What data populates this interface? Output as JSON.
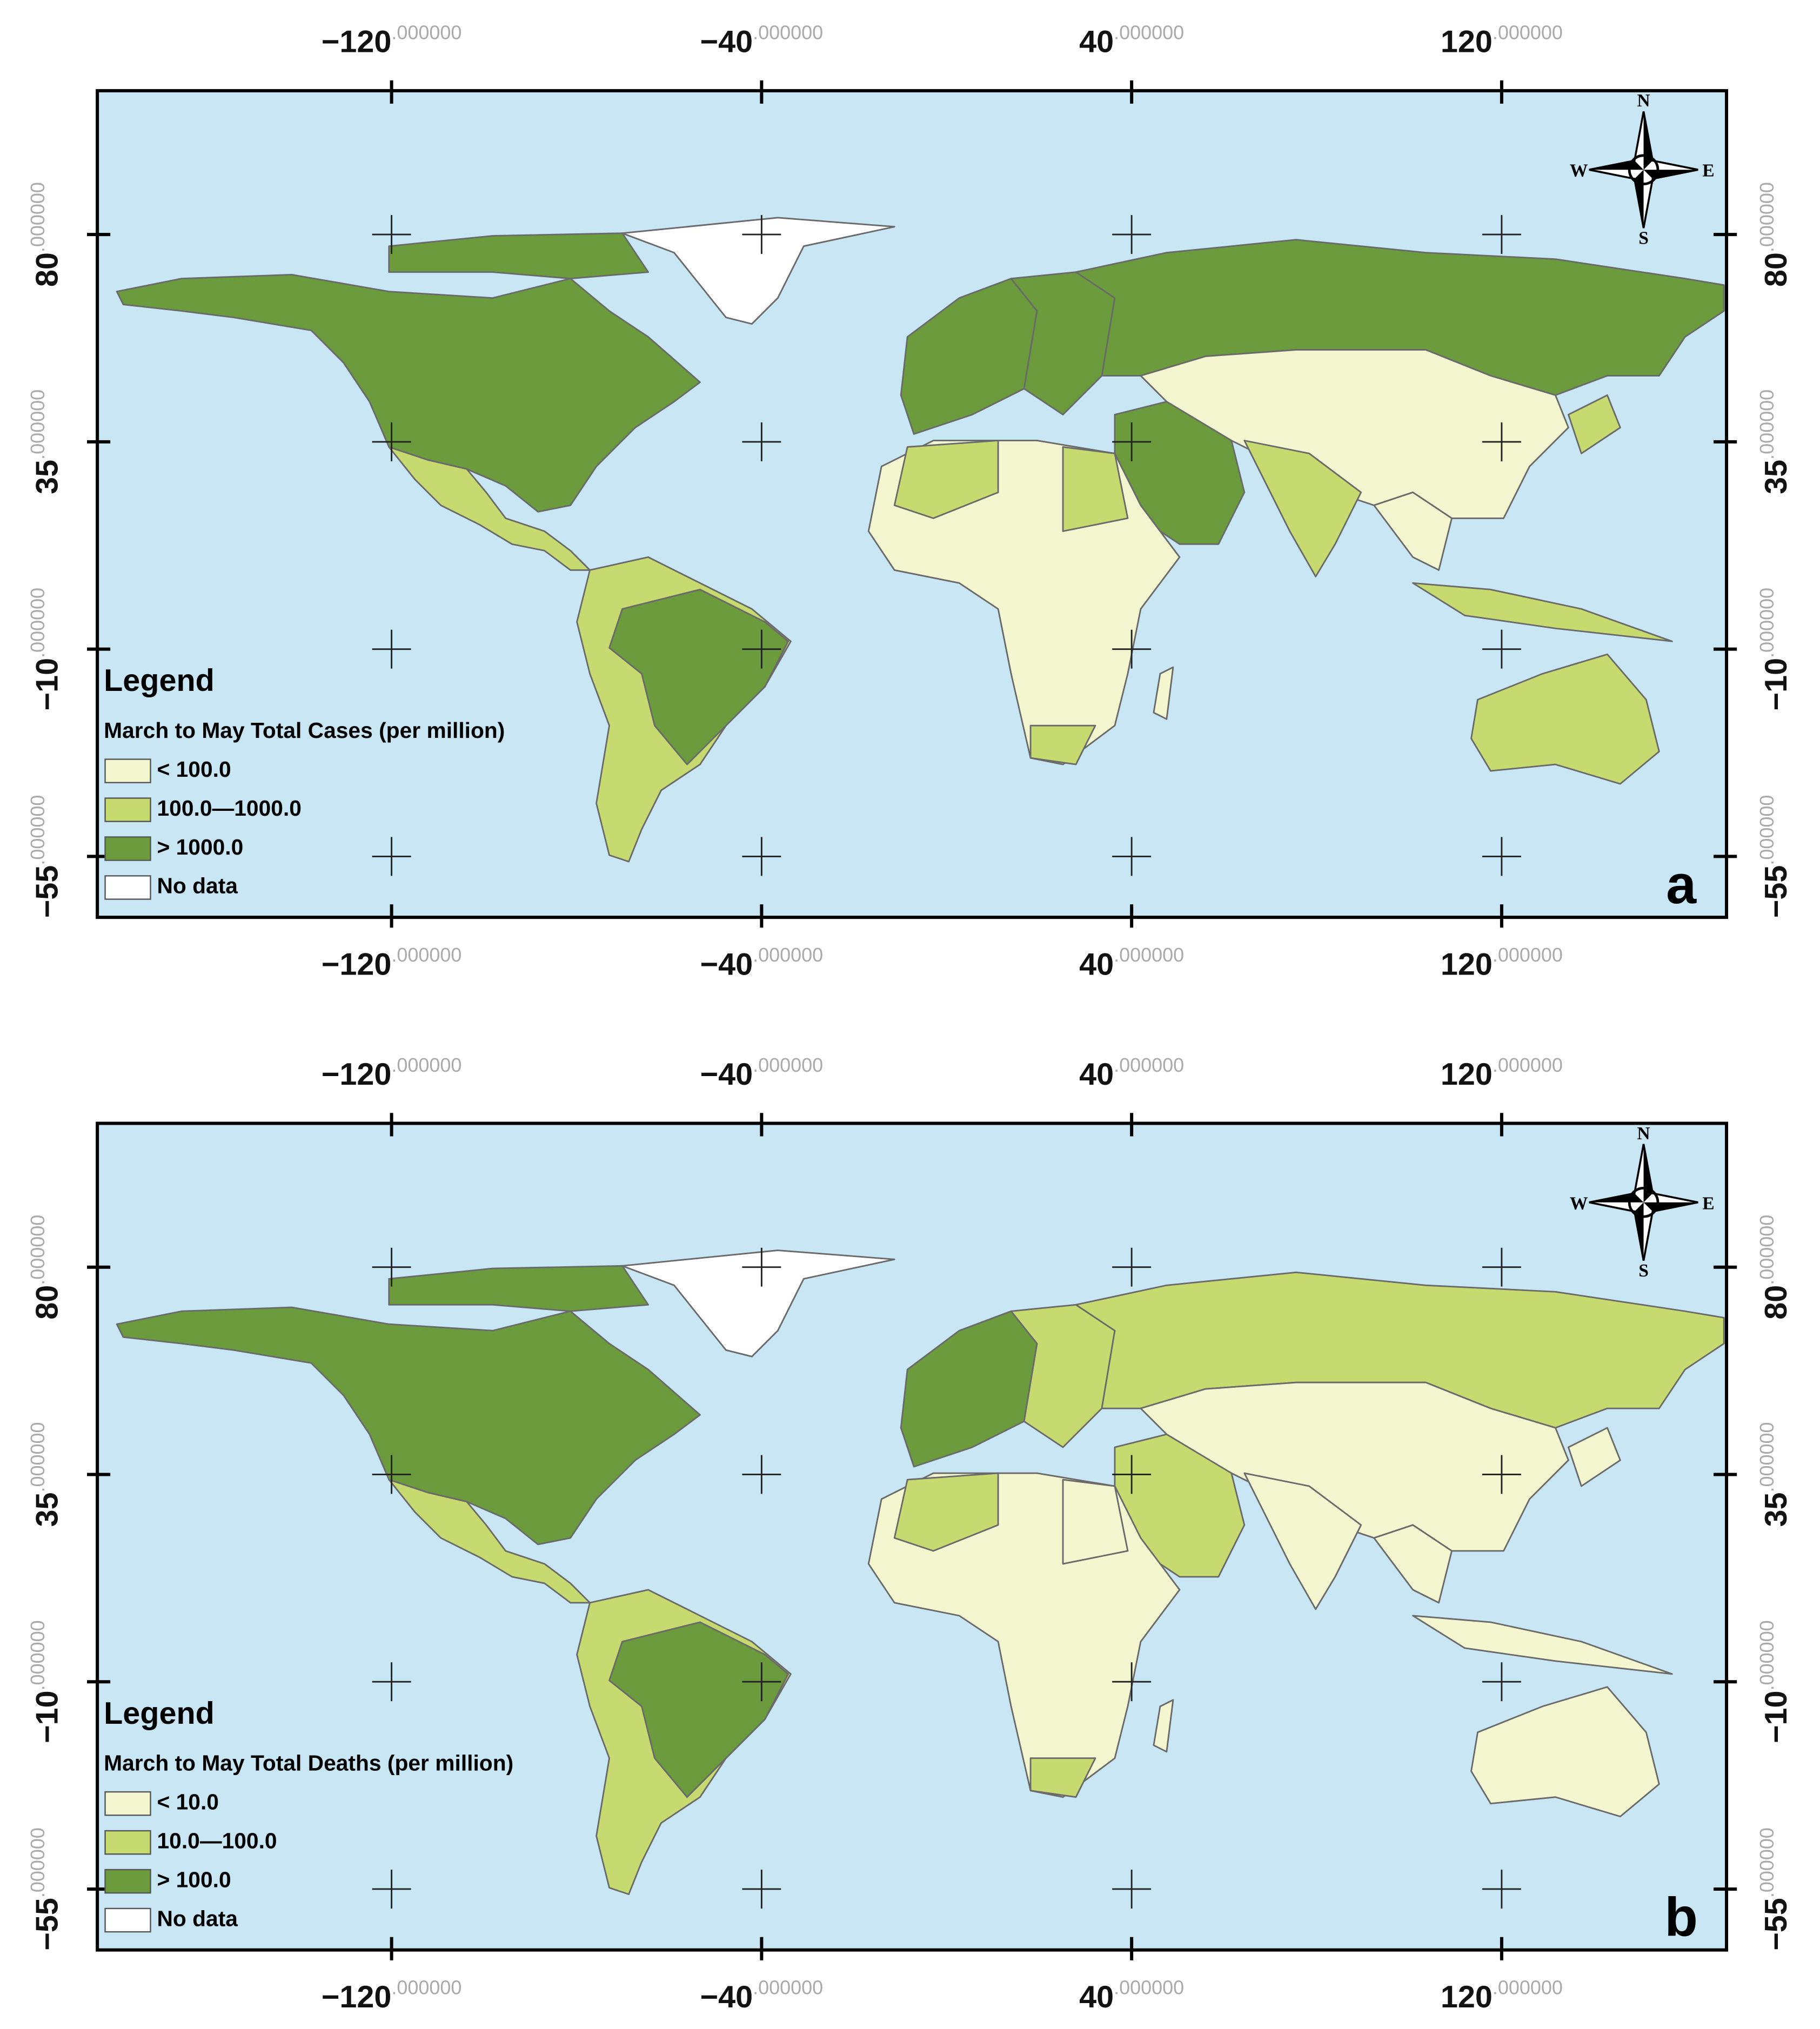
{
  "panels": [
    {
      "label": "a",
      "legend_title": "Legend",
      "legend_subtitle": "March to May Total Cases (per million)",
      "legend_items": [
        {
          "label": "< 100.0",
          "color": "#f3f6cf"
        },
        {
          "label": "100.0—1000.0",
          "color": "#c6da6f"
        },
        {
          "label": "> 1000.0",
          "color": "#6b9b3d"
        },
        {
          "label": "No data",
          "color": "#ffffff"
        }
      ]
    },
    {
      "label": "b",
      "legend_title": "Legend",
      "legend_subtitle": "March to May Total Deaths (per million)",
      "legend_items": [
        {
          "label": "< 10.0",
          "color": "#f3f6cf"
        },
        {
          "label": "10.0—100.0",
          "color": "#c6da6f"
        },
        {
          "label": "> 100.0",
          "color": "#6b9b3d"
        },
        {
          "label": "No data",
          "color": "#ffffff"
        }
      ]
    }
  ],
  "lon_ticks": [
    {
      "value": -120,
      "label": "−120"
    },
    {
      "value": -40,
      "label": "−40"
    },
    40,
    120
  ],
  "lat_ticks": [
    80,
    35,
    {
      "value": -10,
      "label": "−10"
    },
    {
      "value": -55,
      "label": "−55"
    }
  ],
  "tick_decimals": ".000000",
  "compass": {
    "n": "N",
    "s": "S",
    "e": "E",
    "w": "W"
  }
}
